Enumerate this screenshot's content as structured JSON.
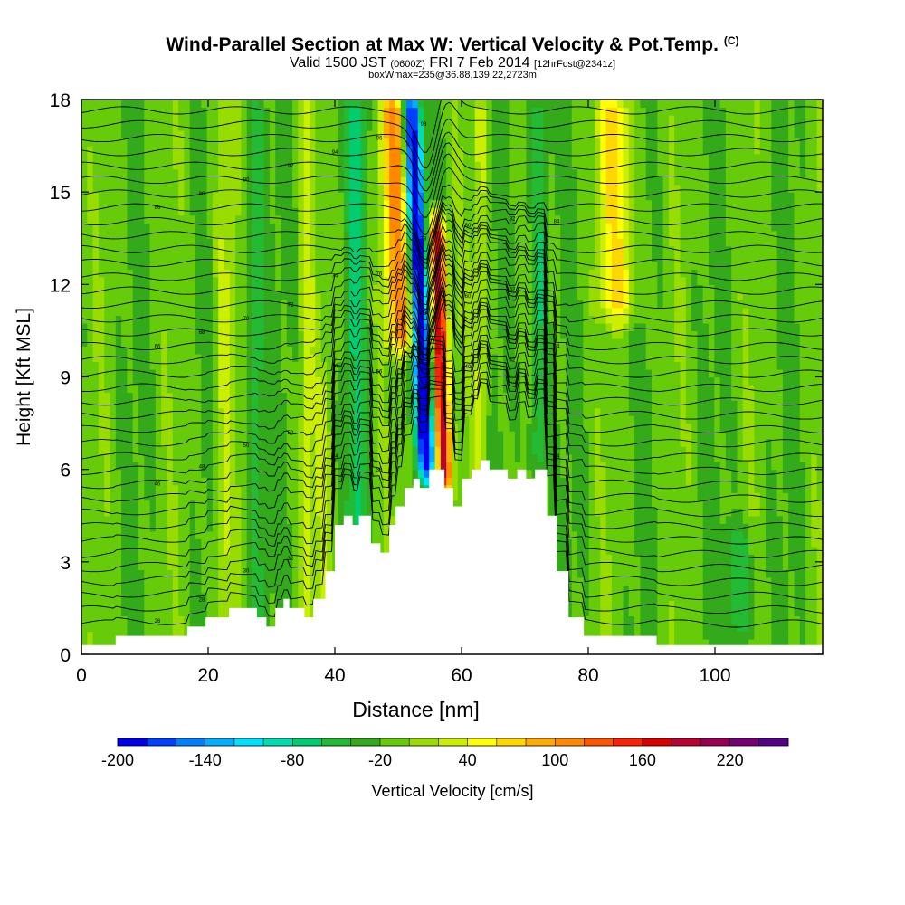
{
  "header": {
    "title": "Wind-Parallel Section at Max W: Vertical Velocity & Pot.Temp.",
    "title_tag": "(C)",
    "subtitle_main": "Valid 1500 JST",
    "subtitle_zulu": "(0600Z)",
    "subtitle_date": "FRI 7 Feb 2014",
    "subtitle_fcst": "[12hrFcst@2341z]",
    "boxline": "boxWmax=235@36.88,139.22,2723m"
  },
  "chart_data": {
    "type": "heatmap",
    "xlabel": "Distance [nm]",
    "ylabel": "Height [Kft MSL]",
    "xlim": [
      0,
      117
    ],
    "ylim": [
      0,
      18
    ],
    "x_ticks": [
      0,
      20,
      40,
      60,
      80,
      100
    ],
    "y_ticks": [
      0,
      3,
      6,
      9,
      12,
      15,
      18
    ],
    "colorbar": {
      "label": "Vertical Velocity [cm/s]",
      "tick_labels": [
        -200,
        -140,
        -80,
        -20,
        40,
        100,
        160,
        220
      ],
      "levels": [
        -200,
        -180,
        -160,
        -140,
        -120,
        -100,
        -80,
        -60,
        -40,
        -20,
        0,
        20,
        40,
        60,
        80,
        100,
        120,
        140,
        160,
        180,
        200,
        220,
        240
      ],
      "colors": [
        "#0000ee",
        "#0040ff",
        "#0080ff",
        "#00b0ff",
        "#00e0ff",
        "#00ddb0",
        "#00cc70",
        "#22bb33",
        "#33aa1a",
        "#66cc0a",
        "#99dd00",
        "#ccee00",
        "#ffff00",
        "#ffd700",
        "#ffaa00",
        "#ff8800",
        "#ff5500",
        "#ff2200",
        "#dd0000",
        "#bb0033",
        "#990055",
        "#770077",
        "#550088"
      ]
    },
    "terrain_profile": {
      "x": [
        0,
        5.4,
        5.4,
        16.7,
        16.7,
        19.6,
        19.6,
        23.3,
        23.3,
        27.7,
        27.7,
        29.2,
        29.2,
        30.6,
        30.6,
        31.9,
        31.9,
        32.8,
        32.8,
        35.2,
        35.2,
        36.6,
        36.6,
        38.5,
        38.5,
        40.0,
        40.0,
        41.4,
        41.4,
        42.8,
        42.8,
        43.8,
        43.8,
        45.7,
        45.7,
        47.2,
        47.2,
        48.6,
        48.6,
        49.6,
        49.6,
        51.0,
        51.0,
        52.4,
        52.4,
        53.4,
        53.4,
        54.9,
        54.9,
        57.3,
        57.3,
        58.7,
        58.7,
        60.1,
        60.1,
        61.6,
        61.6,
        63.0,
        63.0,
        64.4,
        64.4,
        67.3,
        67.3,
        68.8,
        68.8,
        70.2,
        70.2,
        71.6,
        71.6,
        73.5,
        73.5,
        75.0,
        75.0,
        76.9,
        76.9,
        79.3,
        79.3,
        90.8,
        90.8,
        117
      ],
      "y": [
        0.3,
        0.3,
        0.6,
        0.6,
        0.9,
        0.9,
        1.2,
        1.2,
        1.5,
        1.5,
        1.2,
        1.2,
        0.9,
        0.9,
        1.5,
        1.5,
        1.8,
        1.8,
        1.5,
        1.5,
        1.2,
        1.2,
        1.8,
        1.8,
        2.7,
        2.7,
        4.2,
        4.2,
        4.5,
        4.5,
        4.2,
        4.2,
        4.5,
        4.5,
        3.6,
        3.6,
        3.3,
        3.3,
        4.2,
        4.2,
        4.8,
        4.8,
        5.4,
        5.4,
        5.7,
        5.7,
        5.4,
        5.4,
        6.0,
        6.0,
        5.4,
        5.4,
        4.8,
        4.8,
        5.7,
        5.7,
        6.0,
        6.0,
        6.3,
        6.3,
        6.0,
        6.0,
        5.7,
        5.7,
        6.0,
        6.0,
        5.7,
        5.7,
        6.0,
        6.0,
        4.5,
        4.5,
        2.7,
        2.7,
        1.2,
        1.2,
        0.6,
        0.6,
        0.3,
        0.3
      ],
      "min_y": 0
    },
    "velocity_field": {
      "background_cm_s": -15,
      "features": [
        {
          "x": 54.5,
          "y_from": 6,
          "y_to": 18,
          "tilt": -2.6,
          "width": 1.4,
          "value": -200
        },
        {
          "x": 57.2,
          "y_from": 5.5,
          "y_to": 14,
          "tilt": -1.1,
          "width": 1.2,
          "value": 200
        },
        {
          "x": 50.5,
          "y_from": 10,
          "y_to": 18,
          "tilt": -1.2,
          "width": 2.2,
          "value": 120
        },
        {
          "x": 85,
          "y_from": 11,
          "y_to": 18,
          "tilt": -1.0,
          "width": 3.0,
          "value": 70
        },
        {
          "x": 72,
          "y_from": 6,
          "y_to": 18,
          "tilt": 0.4,
          "width": 1.5,
          "value": -50
        },
        {
          "x": 63,
          "y_from": 6,
          "y_to": 18,
          "tilt": 0,
          "width": 1.2,
          "value": 40
        },
        {
          "x": 22.5,
          "y_from": 0.5,
          "y_to": 18,
          "tilt": 0,
          "width": 1.5,
          "value": 40
        },
        {
          "x": 27.5,
          "y_from": 0.5,
          "y_to": 18,
          "tilt": 0,
          "width": 1.5,
          "value": -40
        },
        {
          "x": 35.5,
          "y_from": 0.5,
          "y_to": 18,
          "tilt": 0,
          "width": 1.1,
          "value": 35
        },
        {
          "x": 43.5,
          "y_from": 0.5,
          "y_to": 18,
          "tilt": 0,
          "width": 1.5,
          "value": -45
        },
        {
          "x": 38,
          "y_from": 0.5,
          "y_to": 9,
          "tilt": 0,
          "width": 1.4,
          "value": 25
        },
        {
          "x": 104,
          "y_from": 0.6,
          "y_to": 4,
          "tilt": 0,
          "width": 2.2,
          "value": -40
        }
      ]
    },
    "isentropes": {
      "count": 38,
      "base_height": 1.0,
      "spacing": 0.45,
      "contour_labels": [
        "26",
        "28",
        "30",
        "32",
        "34",
        "36",
        "38",
        "40",
        "42",
        "44",
        "46",
        "48",
        "50",
        "52",
        "54",
        "56",
        "58",
        "60",
        "62",
        "64",
        "66",
        "68",
        "70",
        "72",
        "74",
        "76",
        "78",
        "80",
        "82",
        "84",
        "86",
        "88",
        "90",
        "92",
        "94",
        "96",
        "98",
        "100"
      ]
    }
  }
}
